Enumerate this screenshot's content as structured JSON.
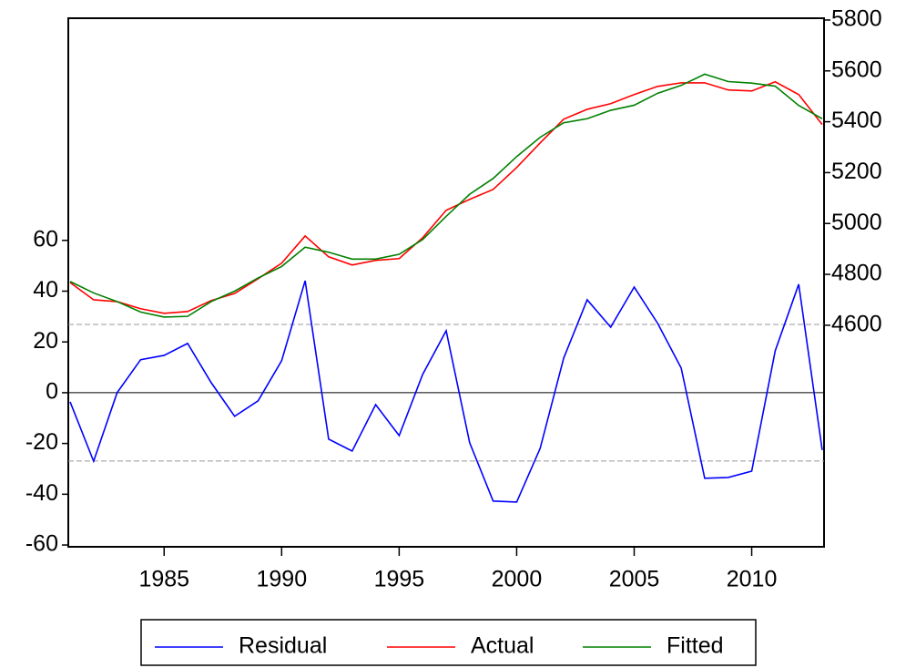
{
  "chart_data": {
    "type": "line",
    "x": [
      1981,
      1982,
      1983,
      1984,
      1985,
      1986,
      1987,
      1988,
      1989,
      1990,
      1991,
      1992,
      1993,
      1994,
      1995,
      1996,
      1997,
      1998,
      1999,
      2000,
      2001,
      2002,
      2003,
      2004,
      2005,
      2006,
      2007,
      2008,
      2009,
      2010,
      2011,
      2012,
      2013
    ],
    "xlim": [
      1981,
      2013
    ],
    "xticks": [
      1985,
      1990,
      1995,
      2000,
      2005,
      2010
    ],
    "ylim": [
      -60.7,
      147.5
    ],
    "yticks": [
      -60,
      -40,
      -20,
      0,
      20,
      40,
      60
    ],
    "y2lim": [
      3729,
      5807
    ],
    "y2ticks": [
      4600,
      4800,
      5000,
      5200,
      5400,
      5600,
      5800
    ],
    "reference_lines": [
      {
        "value": 0,
        "style": "solid"
      },
      {
        "value": 26.9,
        "style": "dashed"
      },
      {
        "value": -26.9,
        "style": "dashed"
      }
    ],
    "legend": "bottom",
    "series": [
      {
        "name": "Residual",
        "color": "#0000ff",
        "axis": "y",
        "values": [
          -3.6,
          -27,
          0,
          13,
          14.7,
          19.4,
          4,
          -9.3,
          -3.2,
          12.6,
          44.1,
          -18.3,
          -23,
          -4.7,
          -16.9,
          7.2,
          24.4,
          -19.7,
          -42.7,
          -43.1,
          -21.9,
          13.6,
          36.6,
          25.8,
          41.6,
          27.3,
          9.7,
          -33.7,
          -33.4,
          -30.9,
          16.5,
          42.7,
          -22.6
        ]
      },
      {
        "name": "Actual",
        "color": "#ff0000",
        "axis": "y2",
        "values": [
          4768,
          4700,
          4693,
          4665,
          4647,
          4654,
          4697,
          4725,
          4783,
          4844,
          4951,
          4869,
          4837,
          4855,
          4862,
          4944,
          5052,
          5095,
          5134,
          5220,
          5317,
          5410,
          5449,
          5471,
          5507,
          5539,
          5553,
          5553,
          5525,
          5521,
          5557,
          5507,
          5389
        ]
      },
      {
        "name": "Fitted",
        "color": "#008000",
        "axis": "y2",
        "values": [
          4772,
          4727,
          4693,
          4652,
          4632,
          4635,
          4693,
          4734,
          4786,
          4831,
          4907,
          4887,
          4860,
          4860,
          4879,
          4937,
          5028,
          5115,
          5177,
          5263,
          5339,
          5396,
          5412,
          5445,
          5465,
          5512,
          5543,
          5587,
          5558,
          5552,
          5540,
          5464,
          5412
        ]
      }
    ]
  }
}
